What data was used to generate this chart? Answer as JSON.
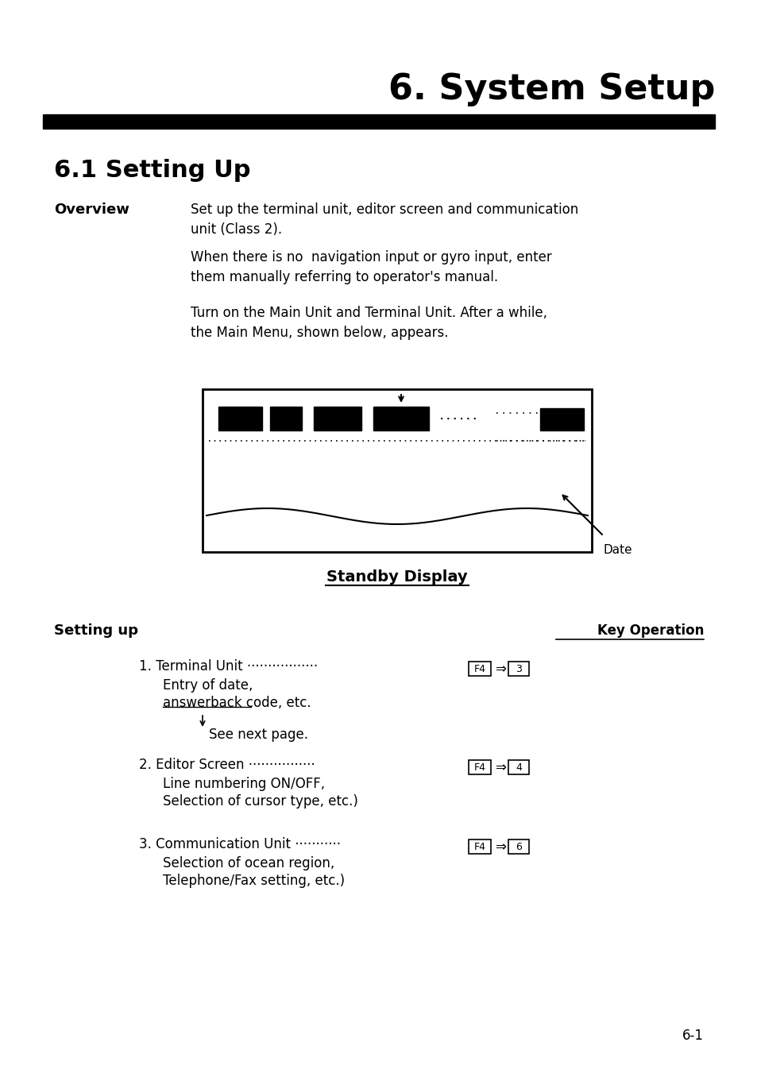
{
  "title": "6. System Setup",
  "section_title": "6.1 Setting Up",
  "overview_label": "Overview",
  "overview_text1": "Set up the terminal unit, editor screen and communication\nunit (Class 2).",
  "overview_text2": "When there is no  navigation input or gyro input, enter\nthem manually referring to operator's manual.",
  "overview_text3": "Turn on the Main Unit and Terminal Unit. After a while,\nthe Main Menu, shown below, appears.",
  "standby_label": "Standby Display",
  "setting_up_label": "Setting up",
  "key_op_label": "Key Operation",
  "item1_dots": "1. Terminal Unit ·················",
  "item1_key1": "F4",
  "item1_arrow": "⇒",
  "item1_key2": "3",
  "item1_sub1": "Entry of date,",
  "item1_sub2": "answerback code, etc.",
  "item1_sub3": "See next page.",
  "item2_dots": "2. Editor Screen ················",
  "item2_key1": "F4",
  "item2_arrow": "⇒",
  "item2_key2": "4",
  "item2_sub1": "Line numbering ON/OFF,",
  "item2_sub2": "Selection of cursor type, etc.)",
  "item3_dots": "3. Communication Unit ···········",
  "item3_key1": "F4",
  "item3_arrow": "⇒",
  "item3_key2": "6",
  "item3_sub1": "Selection of ocean region,",
  "item3_sub2": "Telephone/Fax setting, etc.)",
  "page_num": "6-1",
  "bg_color": "#ffffff",
  "text_color": "#000000",
  "title_bar_color": "#000000"
}
